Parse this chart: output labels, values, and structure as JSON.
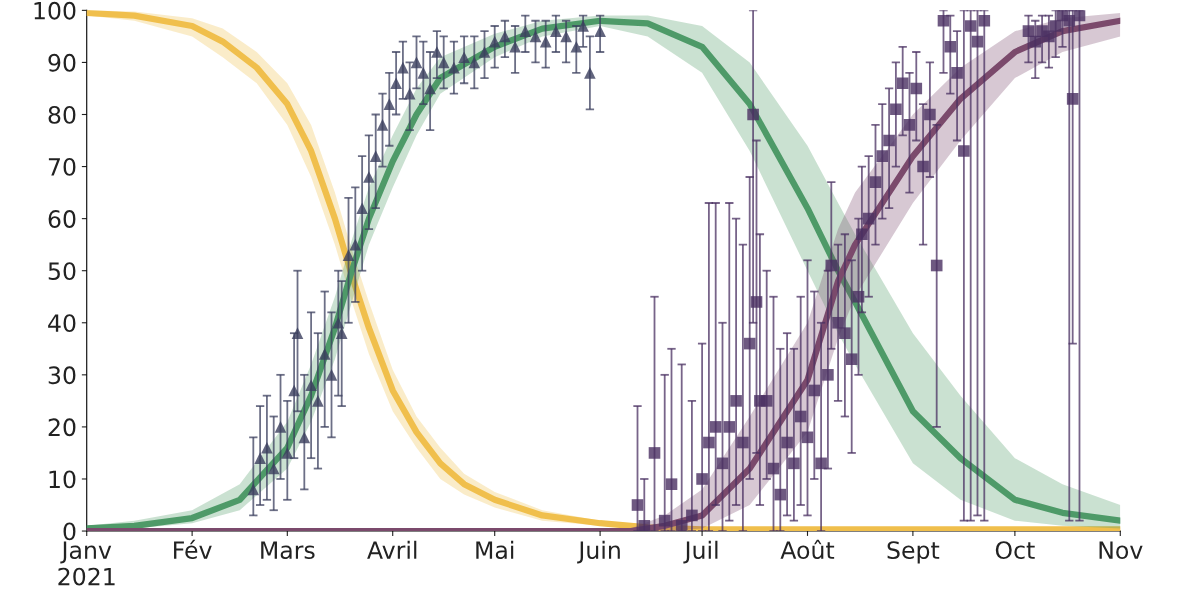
{
  "chart_data": {
    "type": "line",
    "xlim": [
      "2021-01-01",
      "2021-11-01"
    ],
    "ylim": [
      0,
      100
    ],
    "xticks": [
      {
        "value": "2021-01-01",
        "label": "Janv\n2021"
      },
      {
        "value": "2021-02-01",
        "label": "Fév"
      },
      {
        "value": "2021-03-01",
        "label": "Mars"
      },
      {
        "value": "2021-04-01",
        "label": "Avril"
      },
      {
        "value": "2021-05-01",
        "label": "Mai"
      },
      {
        "value": "2021-06-01",
        "label": "Juin"
      },
      {
        "value": "2021-07-01",
        "label": "Juil"
      },
      {
        "value": "2021-08-01",
        "label": "Août"
      },
      {
        "value": "2021-09-01",
        "label": "Sept"
      },
      {
        "value": "2021-10-01",
        "label": "Oct"
      },
      {
        "value": "2021-11-01",
        "label": "Nov"
      }
    ],
    "yticks": [
      0,
      10,
      20,
      30,
      40,
      50,
      60,
      70,
      80,
      90,
      100
    ],
    "grid": false,
    "legend": false,
    "series": [
      {
        "color": "#f0bf4c",
        "x": [
          "2021-01-01",
          "2021-01-15",
          "2021-02-01",
          "2021-02-10",
          "2021-02-20",
          "2021-03-01",
          "2021-03-08",
          "2021-03-15",
          "2021-03-20",
          "2021-03-25",
          "2021-04-01",
          "2021-04-08",
          "2021-04-15",
          "2021-04-22",
          "2021-05-01",
          "2021-05-15",
          "2021-06-01",
          "2021-06-15",
          "2021-07-01",
          "2021-11-01"
        ],
        "values": [
          99.5,
          99,
          97,
          94,
          89,
          82,
          73,
          60,
          49,
          39,
          27,
          19,
          13,
          9,
          6,
          3,
          1.5,
          0.7,
          0.3,
          0.3
        ],
        "lower": [
          99,
          98,
          95,
          91,
          86,
          78,
          68,
          55,
          44,
          34,
          23,
          16,
          10,
          7,
          4.5,
          2,
          1,
          0.3,
          0,
          0
        ],
        "upper": [
          100,
          99.8,
          98.5,
          96.5,
          92,
          86,
          78,
          65,
          54,
          44,
          31,
          22,
          16,
          11,
          7.5,
          4,
          2,
          1,
          0.6,
          0.6
        ]
      },
      {
        "color": "#4e9a68",
        "x": [
          "2021-01-01",
          "2021-01-15",
          "2021-02-01",
          "2021-02-15",
          "2021-03-01",
          "2021-03-08",
          "2021-03-15",
          "2021-03-20",
          "2021-03-25",
          "2021-04-01",
          "2021-04-08",
          "2021-04-15",
          "2021-05-01",
          "2021-05-15",
          "2021-06-01",
          "2021-06-15",
          "2021-07-01",
          "2021-07-15",
          "2021-08-01",
          "2021-08-10",
          "2021-08-15",
          "2021-09-01",
          "2021-09-15",
          "2021-10-01",
          "2021-10-15",
          "2021-11-01"
        ],
        "values": [
          0.5,
          1,
          2.5,
          6,
          16,
          26,
          39,
          50,
          60,
          71,
          80,
          87,
          93,
          96.5,
          98,
          97.5,
          93,
          82,
          62,
          50,
          44,
          23,
          14,
          6,
          3.5,
          2
        ],
        "lower": [
          0,
          0.5,
          1.5,
          4,
          12,
          21,
          33,
          44,
          55,
          66,
          76,
          84,
          91,
          95,
          97,
          95,
          88,
          73,
          50,
          38,
          32,
          13,
          6,
          2,
          1,
          0.5
        ],
        "upper": [
          1,
          2,
          4,
          9,
          21,
          32,
          45,
          56,
          66,
          76,
          85,
          91,
          95.5,
          98,
          99,
          99,
          97,
          90,
          74,
          63,
          57,
          38,
          26,
          14,
          9,
          5
        ]
      },
      {
        "color": "#7b4a6c",
        "x": [
          "2021-01-01",
          "2021-06-10",
          "2021-06-20",
          "2021-07-01",
          "2021-07-15",
          "2021-08-01",
          "2021-08-10",
          "2021-08-15",
          "2021-09-01",
          "2021-09-15",
          "2021-10-01",
          "2021-10-15",
          "2021-11-01"
        ],
        "values": [
          0,
          0,
          1,
          3,
          12,
          29,
          48,
          55,
          72,
          83,
          92,
          96,
          98
        ],
        "lower": [
          0,
          0,
          0,
          0.5,
          5,
          19,
          37,
          45,
          63,
          75,
          87,
          92,
          95
        ],
        "upper": [
          0,
          0.5,
          3,
          8,
          22,
          40,
          58,
          65,
          80,
          89,
          96,
          98.5,
          99.5
        ]
      },
      {
        "type": "scatter",
        "marker": "triangle",
        "color": "#3b3f5e",
        "x": [
          "2021-02-19",
          "2021-02-21",
          "2021-02-23",
          "2021-02-25",
          "2021-02-27",
          "2021-03-01",
          "2021-03-03",
          "2021-03-04",
          "2021-03-06",
          "2021-03-08",
          "2021-03-10",
          "2021-03-12",
          "2021-03-14",
          "2021-03-16",
          "2021-03-17",
          "2021-03-19",
          "2021-03-21",
          "2021-03-23",
          "2021-03-25",
          "2021-03-27",
          "2021-03-29",
          "2021-03-31",
          "2021-04-02",
          "2021-04-04",
          "2021-04-06",
          "2021-04-08",
          "2021-04-10",
          "2021-04-12",
          "2021-04-14",
          "2021-04-16",
          "2021-04-19",
          "2021-04-22",
          "2021-04-25",
          "2021-04-28",
          "2021-05-01",
          "2021-05-04",
          "2021-05-07",
          "2021-05-10",
          "2021-05-13",
          "2021-05-16",
          "2021-05-19",
          "2021-05-22",
          "2021-05-25",
          "2021-05-27",
          "2021-05-29",
          "2021-06-01"
        ],
        "values": [
          8,
          14,
          16,
          12,
          20,
          15,
          27,
          38,
          18,
          28,
          25,
          34,
          30,
          40,
          38,
          53,
          55,
          62,
          68,
          72,
          78,
          82,
          86,
          89,
          84,
          90,
          88,
          85,
          92,
          90,
          89,
          91,
          90,
          92,
          94,
          95,
          93,
          96,
          95,
          94,
          96,
          95,
          93,
          97,
          88,
          96
        ],
        "errors": [
          [
            3,
            18
          ],
          [
            5,
            24
          ],
          [
            6,
            26
          ],
          [
            4,
            22
          ],
          [
            10,
            30
          ],
          [
            6,
            25
          ],
          [
            14,
            38
          ],
          [
            23,
            50
          ],
          [
            8,
            30
          ],
          [
            14,
            42
          ],
          [
            12,
            38
          ],
          [
            20,
            46
          ],
          [
            18,
            42
          ],
          [
            26,
            50
          ],
          [
            24,
            48
          ],
          [
            40,
            64
          ],
          [
            44,
            66
          ],
          [
            50,
            72
          ],
          [
            58,
            76
          ],
          [
            62,
            80
          ],
          [
            70,
            84
          ],
          [
            74,
            88
          ],
          [
            80,
            92
          ],
          [
            83,
            94
          ],
          [
            77,
            90
          ],
          [
            85,
            95
          ],
          [
            82,
            94
          ],
          [
            77,
            92
          ],
          [
            87,
            96
          ],
          [
            85,
            95
          ],
          [
            84,
            94
          ],
          [
            86,
            95
          ],
          [
            85,
            95
          ],
          [
            87,
            96
          ],
          [
            89,
            97
          ],
          [
            91,
            98
          ],
          [
            88,
            97
          ],
          [
            92,
            99
          ],
          [
            90,
            98
          ],
          [
            89,
            98
          ],
          [
            92,
            99
          ],
          [
            90,
            98
          ],
          [
            88,
            97
          ],
          [
            93,
            99
          ],
          [
            81,
            95
          ],
          [
            92,
            99
          ]
        ]
      },
      {
        "type": "scatter",
        "marker": "square",
        "color": "#4a3061",
        "x": [
          "2021-06-12",
          "2021-06-14",
          "2021-06-17",
          "2021-06-20",
          "2021-06-22",
          "2021-06-25",
          "2021-06-28",
          "2021-07-01",
          "2021-07-03",
          "2021-07-05",
          "2021-07-07",
          "2021-07-09",
          "2021-07-11",
          "2021-07-13",
          "2021-07-15",
          "2021-07-16",
          "2021-07-17",
          "2021-07-18",
          "2021-07-20",
          "2021-07-22",
          "2021-07-24",
          "2021-07-26",
          "2021-07-28",
          "2021-07-30",
          "2021-08-01",
          "2021-08-03",
          "2021-08-05",
          "2021-08-07",
          "2021-08-08",
          "2021-08-10",
          "2021-08-12",
          "2021-08-14",
          "2021-08-16",
          "2021-08-17",
          "2021-08-19",
          "2021-08-21",
          "2021-08-23",
          "2021-08-25",
          "2021-08-27",
          "2021-08-29",
          "2021-08-31",
          "2021-09-02",
          "2021-09-04",
          "2021-09-06",
          "2021-09-08",
          "2021-09-10",
          "2021-09-12",
          "2021-09-14",
          "2021-09-16",
          "2021-09-18",
          "2021-09-20",
          "2021-09-22",
          "2021-10-05",
          "2021-10-07",
          "2021-10-09",
          "2021-10-11",
          "2021-10-13",
          "2021-10-15",
          "2021-10-17",
          "2021-10-18",
          "2021-10-20"
        ],
        "values": [
          5,
          1,
          15,
          2,
          9,
          1,
          3,
          10,
          17,
          20,
          13,
          20,
          25,
          17,
          36,
          80,
          44,
          25,
          25,
          12,
          7,
          17,
          13,
          22,
          18,
          27,
          13,
          30,
          51,
          40,
          38,
          33,
          45,
          57,
          60,
          67,
          72,
          75,
          81,
          86,
          78,
          85,
          70,
          80,
          51,
          98,
          93,
          88,
          73,
          97,
          94,
          98,
          96,
          94,
          96,
          95,
          97,
          99,
          98,
          83,
          99
        ],
        "errors": [
          [
            0,
            24
          ],
          [
            0,
            10
          ],
          [
            0,
            45
          ],
          [
            0,
            30
          ],
          [
            0,
            35
          ],
          [
            0,
            32
          ],
          [
            0,
            25
          ],
          [
            0,
            36
          ],
          [
            0,
            63
          ],
          [
            5,
            63
          ],
          [
            0,
            40
          ],
          [
            2,
            63
          ],
          [
            5,
            60
          ],
          [
            0,
            55
          ],
          [
            10,
            68
          ],
          [
            40,
            100
          ],
          [
            15,
            75
          ],
          [
            5,
            57
          ],
          [
            10,
            50
          ],
          [
            0,
            45
          ],
          [
            0,
            35
          ],
          [
            3,
            38
          ],
          [
            2,
            35
          ],
          [
            5,
            45
          ],
          [
            3,
            52
          ],
          [
            10,
            46
          ],
          [
            0,
            40
          ],
          [
            12,
            50
          ],
          [
            35,
            67
          ],
          [
            25,
            55
          ],
          [
            22,
            57
          ],
          [
            15,
            52
          ],
          [
            30,
            60
          ],
          [
            42,
            70
          ],
          [
            45,
            72
          ],
          [
            55,
            78
          ],
          [
            60,
            82
          ],
          [
            62,
            85
          ],
          [
            70,
            90
          ],
          [
            76,
            93
          ],
          [
            65,
            88
          ],
          [
            75,
            92
          ],
          [
            55,
            82
          ],
          [
            68,
            90
          ],
          [
            20,
            78
          ],
          [
            88,
            100
          ],
          [
            84,
            99
          ],
          [
            75,
            96
          ],
          [
            2,
            100
          ],
          [
            2,
            100
          ],
          [
            3,
            100
          ],
          [
            2,
            100
          ],
          [
            90,
            99
          ],
          [
            87,
            98
          ],
          [
            90,
            99
          ],
          [
            89,
            99
          ],
          [
            91,
            100
          ],
          [
            93,
            100
          ],
          [
            2,
            100
          ],
          [
            36,
            100
          ],
          [
            2,
            100
          ]
        ]
      }
    ]
  }
}
